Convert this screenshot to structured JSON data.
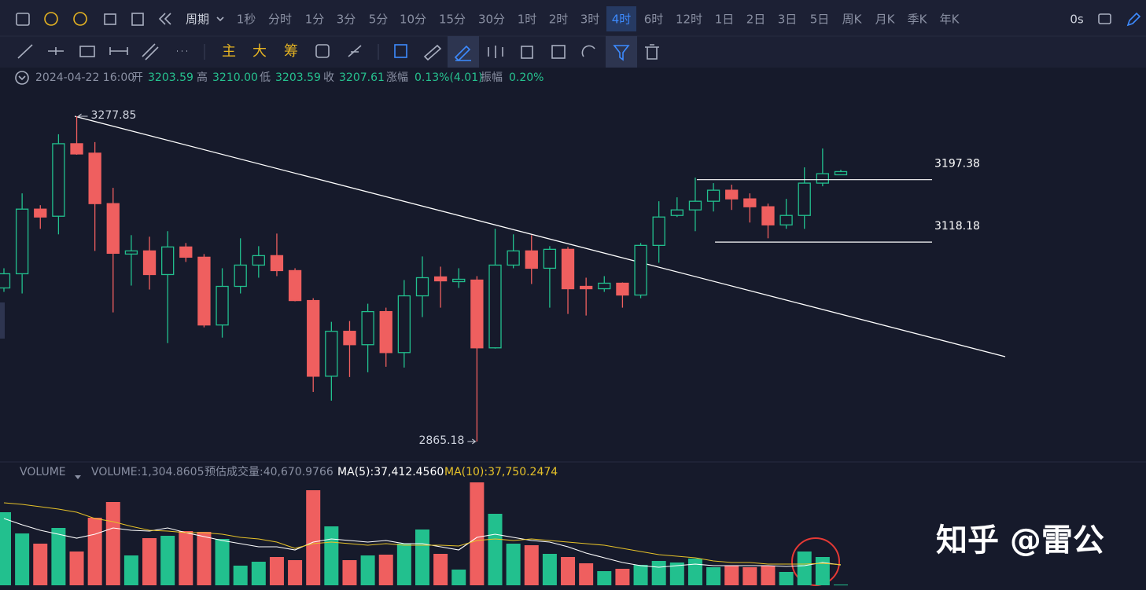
{
  "toolbar": {
    "period_label": "周期",
    "periods": [
      "1秒",
      "分时",
      "1分",
      "3分",
      "5分",
      "10分",
      "15分",
      "30分",
      "1时",
      "2时",
      "3时",
      "4时",
      "6时",
      "12时",
      "1日",
      "2日",
      "3日",
      "5日",
      "周K",
      "月K",
      "季K",
      "年K"
    ],
    "selected": "4时",
    "refresh": "0s",
    "indicators": [
      "主",
      "大",
      "筹"
    ]
  },
  "info": {
    "datetime": "2024-04-22 16:00",
    "fields": [
      {
        "name": "开",
        "value": "3203.59"
      },
      {
        "name": "高",
        "value": "3210.00"
      },
      {
        "name": "低",
        "value": "3203.59"
      },
      {
        "name": "收",
        "value": "3207.61"
      },
      {
        "name": "涨幅",
        "value": "0.13%(4.01)"
      },
      {
        "name": "振幅",
        "value": "0.20%"
      }
    ]
  },
  "chart_data": [
    {
      "type": "candlestick",
      "open": [
        3060,
        3078,
        3160,
        3151,
        3243,
        3231,
        3167,
        3103,
        3107,
        3077,
        3112,
        3099,
        3013,
        3062,
        3089,
        3101,
        3082,
        3044,
        2948,
        3005,
        2988,
        3030,
        2978,
        3050,
        3074,
        3068,
        3070,
        2984,
        3089,
        3107,
        3085,
        3109,
        3062,
        3059,
        3066,
        3051,
        3114,
        3152,
        3159,
        3170,
        3184,
        3173,
        3163,
        3140,
        3152,
        3193,
        3203.59
      ],
      "high": [
        3085,
        3180,
        3165,
        3255,
        3277.85,
        3245,
        3187,
        3127,
        3125,
        3132,
        3117,
        3103,
        3085,
        3123,
        3113,
        3129,
        3085,
        3047,
        3017,
        3018,
        3040,
        3035,
        3070,
        3100,
        3087,
        3085,
        3075,
        3135,
        3128,
        3127,
        3113,
        3112,
        3073,
        3075,
        3067,
        3117,
        3170,
        3175,
        3200,
        3193,
        3191,
        3180,
        3167,
        3173,
        3213,
        3237,
        3210.0
      ],
      "low": [
        3055,
        3053,
        3135,
        3128,
        3229,
        3107,
        3029,
        3063,
        3058,
        2990,
        3093,
        3010,
        2997,
        3053,
        3073,
        3075,
        3043,
        2928,
        2917,
        2947,
        2953,
        2960,
        2959,
        3023,
        3035,
        3060,
        2865.18,
        2983,
        3085,
        3065,
        3035,
        3027,
        3025,
        3055,
        3035,
        3047,
        3092,
        3150,
        3132,
        3157,
        3159,
        3143,
        3123,
        3135,
        3135,
        3189,
        3203.59
      ],
      "close": [
        3078,
        3160,
        3150,
        3243,
        3230,
        3167,
        3104,
        3107,
        3077,
        3112,
        3099,
        3013,
        3062,
        3089,
        3101,
        3082,
        3044,
        2948,
        3005,
        2988,
        3030,
        2978,
        3050,
        3073,
        3069,
        3071,
        2984,
        3089,
        3107,
        3085,
        3109,
        3059,
        3059,
        3066,
        3051,
        3114,
        3150,
        3159,
        3170,
        3184,
        3173,
        3163,
        3140,
        3152,
        3193,
        3205,
        3207.61
      ],
      "ylim": [
        2847.2,
        3315.7
      ],
      "up_color": "#22c08e",
      "down_color": "#ef5f5f",
      "levels": [
        3197.38,
        3118.18
      ]
    },
    {
      "type": "bar",
      "title": "VOLUME",
      "legend": "VOLUME:1,304.8605",
      "estimate": "预估成交量:40,670.9766",
      "values": [
        133920,
        95040,
        76320,
        105120,
        61920,
        123840,
        152640,
        54720,
        86400,
        90720,
        99360,
        97920,
        84960,
        36000,
        43200,
        51840,
        46080,
        174240,
        108000,
        46080,
        54720,
        56160,
        76320,
        102240,
        57600,
        28800,
        188640,
        131040,
        76320,
        73440,
        57600,
        51840,
        40320,
        25920,
        30240,
        37440,
        44640,
        41760,
        48960,
        33120,
        36000,
        33120,
        36000,
        24480,
        61920,
        51840,
        1304.8605
      ],
      "series": [
        {
          "name": "MA(5):37,412.4560",
          "color": "#ffffff",
          "values": [
            122400,
            110880,
            100800,
            93600,
            86400,
            93600,
            105120,
            100800,
            99360,
            105120,
            96480,
            89280,
            82080,
            76320,
            70560,
            70560,
            64800,
            79200,
            84960,
            82080,
            79200,
            82080,
            76320,
            76320,
            70560,
            64800,
            87840,
            93600,
            87840,
            82080,
            79200,
            70560,
            59040,
            50400,
            41760,
            36000,
            33120,
            36000,
            38880,
            36000,
            36000,
            36000,
            36000,
            34560,
            36000,
            41760,
            37412.456
          ]
        },
        {
          "name": "MA(10):37,750.2474",
          "color": "#e6c229",
          "values": [
            151200,
            148320,
            144000,
            139680,
            133920,
            122400,
            116640,
            108000,
            100800,
            99360,
            96480,
            96480,
            93600,
            87840,
            84960,
            79200,
            67680,
            76320,
            79200,
            76320,
            73440,
            76320,
            73440,
            73440,
            73440,
            72000,
            82080,
            84960,
            82080,
            84960,
            82080,
            79200,
            76320,
            73440,
            67680,
            61920,
            56160,
            53280,
            50400,
            44640,
            41760,
            41760,
            38880,
            38880,
            38880,
            40320,
            37750.2474
          ]
        }
      ],
      "ylim": [
        0,
        201600
      ]
    }
  ],
  "watermark": "知乎 @雷公"
}
